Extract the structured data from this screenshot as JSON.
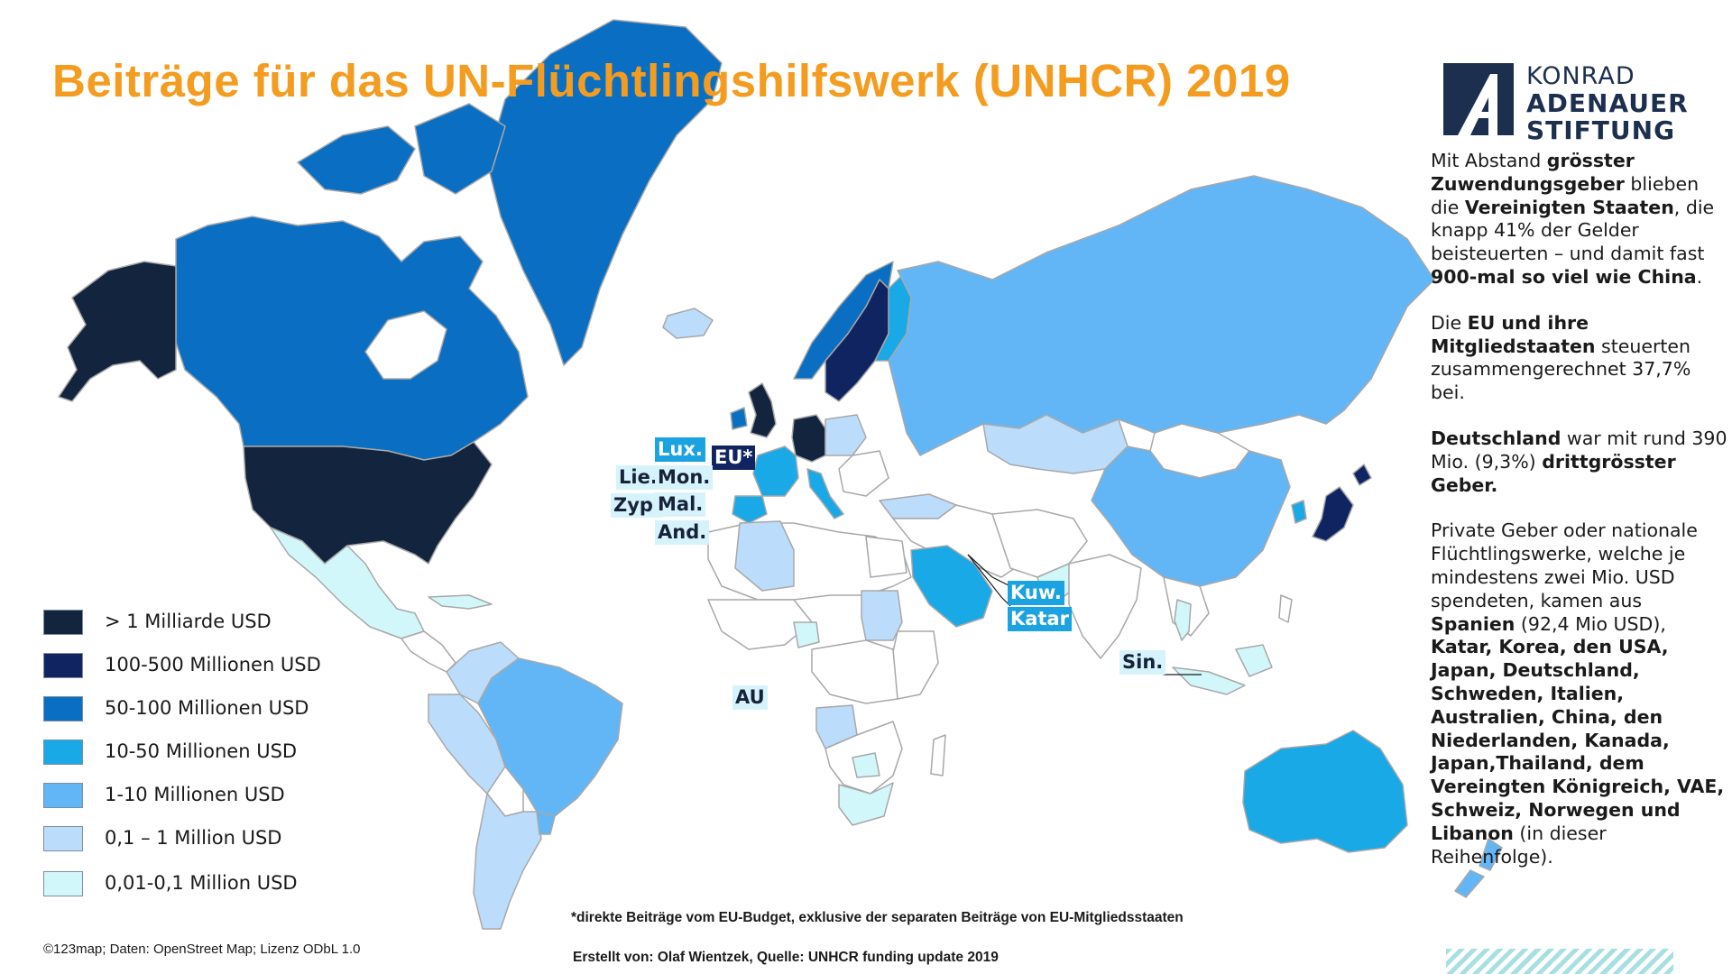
{
  "title": "Beiträge für das UN-Flüchtlingshilfswerk (UNHCR) 2019",
  "logo": {
    "line1": "KONRAD",
    "line2": "ADENAUER",
    "line3": "STIFTUNG",
    "color": "#1d2f4f"
  },
  "info": {
    "p1": [
      {
        "t": "Mit Abstand "
      },
      {
        "t": "grösster Zuwendungsgeber",
        "b": true
      },
      {
        "t": " blieben die "
      },
      {
        "t": "Vereinigten Staaten",
        "b": true
      },
      {
        "t": ", die knapp 41% der Gelder beisteuerten – und damit fast "
      },
      {
        "t": "900-mal so viel wie China",
        "b": true
      },
      {
        "t": "."
      }
    ],
    "p2": [
      {
        "t": "Die "
      },
      {
        "t": "EU und ihre Mitgliedstaaten",
        "b": true
      },
      {
        "t": " steuerten zusammengerechnet 37,7%  bei."
      }
    ],
    "p3": [
      {
        "t": "Deutschland",
        "b": true
      },
      {
        "t": " war mit rund 390 Mio. (9,3%) "
      },
      {
        "t": "drittgrösster Geber.",
        "b": true
      }
    ],
    "p4": [
      {
        "t": "Private Geber oder nationale Flüchtlingswerke, welche je mindestens zwei Mio. USD spendeten, kamen aus "
      },
      {
        "t": "Spanien",
        "b": true
      },
      {
        "t": " (92,4 Mio USD), "
      },
      {
        "t": "Katar, Korea, den USA, Japan, Deutschland, Schweden, Italien, Australien, China, den Niederlanden, Kanada, Japan,Thailand, dem Vereingten Königreich, VAE, Schweiz, Norwegen und Libanon",
        "b": true
      },
      {
        "t": " (in dieser Reihenfolge)."
      }
    ]
  },
  "legend": [
    {
      "label": "> 1 Milliarde USD",
      "color": "#13243f"
    },
    {
      "label": "100-500 Millionen USD",
      "color": "#0f2461"
    },
    {
      "label": "50-100 Millionen USD",
      "color": "#0a6fc2"
    },
    {
      "label": "10-50 Millionen USD",
      "color": "#18a9e6"
    },
    {
      "label": "1-10 Millionen USD",
      "color": "#63b6f6"
    },
    {
      "label": "0,1 – 1 Million USD",
      "color": "#bcdcfb"
    },
    {
      "label": "0,01-0,1 Million USD",
      "color": "#d2f7fa"
    }
  ],
  "map_labels": {
    "lux": "Lux.",
    "eu": "EU*",
    "lie": "Lie.",
    "mon": "Mon.",
    "zyp": "Zyp.",
    "mal": "Mal.",
    "and": "And.",
    "kuw": "Kuw.",
    "katar": "Katar",
    "sin": "Sin.",
    "au": "AU"
  },
  "notes": {
    "eu_footnote": "*direkte Beiträge vom EU-Budget, exklusive der separaten Beiträge von EU-Mitgliedsstaaten",
    "credit": "Erstellt von: Olaf Wientzek, Quelle: UNHCR funding update 2019",
    "copyright": "©123map; Daten: OpenStreet Map; Lizenz ODbL 1.0"
  },
  "colors": {
    "title": "#f39c1f",
    "border": "#a8a8a8",
    "no_data": "#ffffff"
  }
}
